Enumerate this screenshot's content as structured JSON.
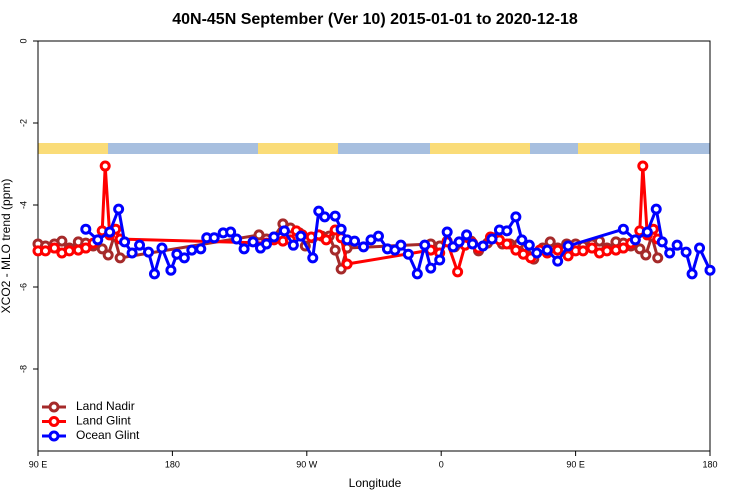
{
  "chart_data": {
    "type": "line",
    "title": "40N-45N September (Ver 10)   2015-01-01 to 2020-12-18",
    "x_label": "Longitude",
    "y_label": "XCO2 - MLO trend (ppm)",
    "xlim": [
      90,
      540
    ],
    "ylim": [
      -10,
      0
    ],
    "xticks": [
      {
        "value": 90,
        "label": "90 E"
      },
      180,
      {
        "value": 270,
        "label": "90 W"
      },
      {
        "value": 360,
        "label": "0"
      },
      {
        "value": 450,
        "label": "90 E"
      },
      {
        "value": 540,
        "label": "180"
      }
    ],
    "yticks": [
      0,
      -2,
      -4,
      -6,
      -8
    ],
    "legend_position": "lower left",
    "series": [
      {
        "name": "Land Nadir",
        "color": "#a52a2a",
        "x": [
          90,
          95,
          101,
          106,
          111,
          117,
          122,
          127,
          133,
          137,
          141,
          145,
          238,
          243,
          248,
          254,
          259,
          265,
          269,
          274,
          280,
          285,
          289,
          293,
          297,
          353,
          359,
          364,
          369,
          374,
          380,
          385,
          391,
          396,
          401,
          406,
          412,
          417,
          422,
          428,
          433,
          438,
          444,
          450,
          455,
          461,
          466,
          471,
          477,
          482,
          487,
          493,
          497,
          501,
          505
        ],
        "values": [
          -4.95,
          -5.0,
          -4.95,
          -4.88,
          -5.05,
          -4.9,
          -4.93,
          -5.0,
          -5.07,
          -5.22,
          -4.76,
          -5.29,
          -4.73,
          -4.83,
          -4.78,
          -4.46,
          -4.56,
          -4.68,
          -5.0,
          -4.8,
          -4.76,
          -4.76,
          -5.1,
          -5.56,
          -5.05,
          -4.95,
          -5.0,
          -4.88,
          -5.02,
          -4.93,
          -4.88,
          -5.12,
          -4.93,
          -4.8,
          -4.95,
          -4.95,
          -4.95,
          -5.2,
          -5.32,
          -5.05,
          -4.9,
          -5.05,
          -4.95,
          -4.95,
          -5.0,
          -4.95,
          -4.88,
          -5.05,
          -4.9,
          -4.93,
          -5.0,
          -5.07,
          -5.22,
          -4.76,
          -5.29
        ]
      },
      {
        "name": "Land Glint",
        "color": "#ff0000",
        "x": [
          90,
          95,
          101,
          106,
          111,
          117,
          122,
          127,
          133,
          135,
          138,
          142,
          145,
          243,
          248,
          254,
          259,
          263,
          267,
          273,
          278,
          283,
          289,
          293,
          297,
          353,
          359,
          364,
          371,
          376,
          381,
          385,
          393,
          399,
          404,
          410,
          415,
          420,
          426,
          431,
          438,
          445,
          450,
          455,
          461,
          466,
          471,
          477,
          482,
          487,
          493,
          495,
          498,
          502,
          505
        ],
        "values": [
          -5.12,
          -5.12,
          -5.05,
          -5.17,
          -5.12,
          -5.1,
          -5.05,
          -4.93,
          -4.63,
          -3.05,
          -4.73,
          -4.59,
          -4.83,
          -4.93,
          -4.85,
          -4.88,
          -4.85,
          -4.63,
          -4.73,
          -4.78,
          -4.73,
          -4.85,
          -4.61,
          -4.8,
          -5.44,
          -5.1,
          -5.17,
          -4.9,
          -5.63,
          -4.98,
          -4.93,
          -5.05,
          -4.78,
          -4.85,
          -4.95,
          -5.1,
          -5.2,
          -5.29,
          -5.1,
          -5.17,
          -5.1,
          -5.24,
          -5.12,
          -5.12,
          -5.05,
          -5.17,
          -5.12,
          -5.1,
          -5.05,
          -4.93,
          -4.63,
          -3.05,
          -4.73,
          -4.59,
          -4.83
        ]
      },
      {
        "name": "Ocean Glint",
        "color": "#0000ff",
        "x": [
          122,
          130,
          138,
          144,
          148,
          153,
          158,
          164,
          168,
          173,
          179,
          183,
          188,
          193,
          199,
          203,
          208,
          214,
          219,
          223,
          228,
          234,
          239,
          243,
          248,
          255,
          261,
          266,
          274,
          278,
          282,
          289,
          293,
          297,
          302,
          308,
          313,
          318,
          324,
          329,
          333,
          338,
          344,
          349,
          353,
          359,
          364,
          368,
          372,
          377,
          381,
          388,
          394,
          399,
          404,
          410,
          414,
          419,
          424,
          431,
          438,
          445,
          482,
          490,
          498,
          504,
          508,
          513,
          518,
          524,
          528,
          533,
          540
        ],
        "values": [
          -4.59,
          -4.85,
          -4.66,
          -4.1,
          -4.9,
          -5.17,
          -4.98,
          -5.15,
          -5.68,
          -5.05,
          -5.59,
          -5.2,
          -5.29,
          -5.1,
          -5.07,
          -4.8,
          -4.8,
          -4.68,
          -4.66,
          -4.83,
          -5.07,
          -4.9,
          -5.05,
          -4.95,
          -4.78,
          -4.63,
          -4.98,
          -4.76,
          -5.29,
          -4.15,
          -4.29,
          -4.27,
          -4.59,
          -4.85,
          -4.88,
          -5.02,
          -4.85,
          -4.76,
          -5.07,
          -5.1,
          -4.98,
          -5.2,
          -5.68,
          -4.98,
          -5.54,
          -5.34,
          -4.66,
          -5.02,
          -4.9,
          -4.73,
          -4.95,
          -5.0,
          -4.83,
          -4.61,
          -4.63,
          -4.29,
          -4.85,
          -4.98,
          -5.17,
          -5.1,
          -5.37,
          -5.0,
          -4.59,
          -4.85,
          -4.66,
          -4.1,
          -4.9,
          -5.17,
          -4.98,
          -5.15,
          -5.68,
          -5.05,
          -5.59
        ]
      }
    ]
  }
}
